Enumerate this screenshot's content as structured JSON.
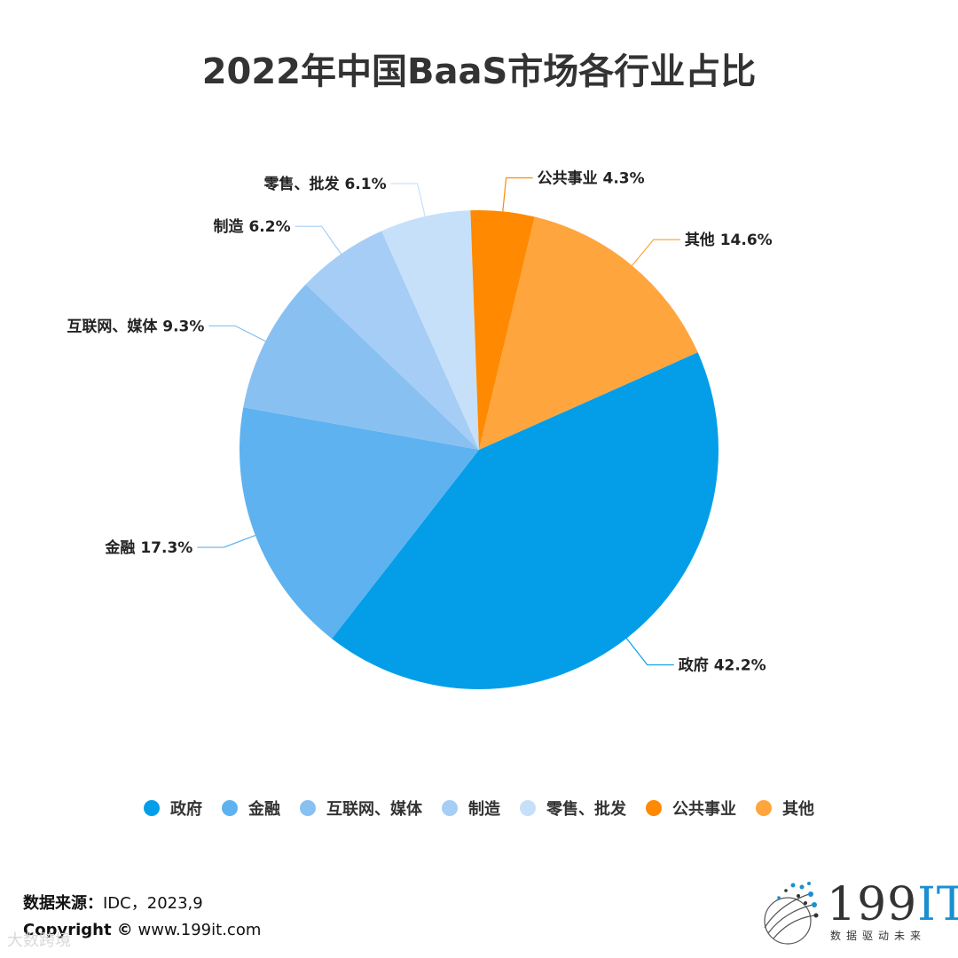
{
  "chart_data": {
    "type": "pie",
    "title": "2022年中国BaaS市场各行业占比",
    "start_angle_deg": -24,
    "slices": [
      {
        "name": "政府",
        "value": 42.2,
        "label": "政府 42.2%",
        "color": "#049ee8"
      },
      {
        "name": "金融",
        "value": 17.3,
        "label": "金融 17.3%",
        "color": "#5eb2ef"
      },
      {
        "name": "互联网、媒体",
        "value": 9.3,
        "label": "互联网、媒体 9.3%",
        "color": "#89c0f2"
      },
      {
        "name": "制造",
        "value": 6.2,
        "label": "制造 6.2%",
        "color": "#a6cdf5"
      },
      {
        "name": "零售、批发",
        "value": 6.1,
        "label": "零售、批发 6.1%",
        "color": "#c6e0f9"
      },
      {
        "name": "公共事业",
        "value": 4.3,
        "label": "公共事业 4.3%",
        "color": "#ff8900"
      },
      {
        "name": "其他",
        "value": 14.6,
        "label": "其他 14.6%",
        "color": "#ffa53e"
      }
    ],
    "legend": {
      "placement": "bottom"
    }
  },
  "footer": {
    "source_label": "数据来源：",
    "source_value": "IDC，2023,9",
    "copyright_label": "Copyright ©",
    "copyright_value": "www.199it.com"
  },
  "logo": {
    "name": "199",
    "suffix": "IT",
    "tagline": "数据驱动未来"
  },
  "watermark": "大数跨境"
}
